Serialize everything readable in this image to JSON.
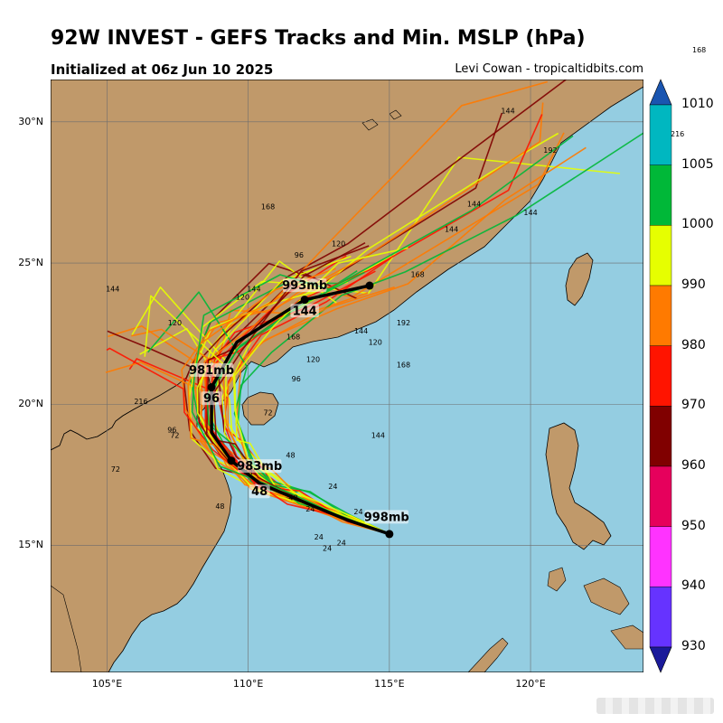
{
  "header": {
    "title": "92W INVEST - GEFS Tracks and Min. MSLP (hPa)",
    "init": "Initialized at 06z Jun 10 2025",
    "credit": "Levi Cowan - tropicaltidbits.com"
  },
  "stray_labels": [
    "168",
    "216"
  ],
  "map": {
    "lat_range": [
      10.5,
      31.5
    ],
    "lon_range": [
      103,
      124
    ],
    "lat_ticks": [
      {
        "v": 30,
        "label": "30°N"
      },
      {
        "v": 25,
        "label": "25°N"
      },
      {
        "v": 20,
        "label": "20°N"
      },
      {
        "v": 15,
        "label": "15°N"
      }
    ],
    "lon_ticks": [
      {
        "v": 105,
        "label": "105°E"
      },
      {
        "v": 110,
        "label": "110°E"
      },
      {
        "v": 115,
        "label": "115°E"
      },
      {
        "v": 120,
        "label": "120°E"
      }
    ],
    "colors": {
      "ocean": "#94cde1",
      "land": "#c0996a",
      "grid": "#6d6d6d"
    }
  },
  "mean_track": [
    {
      "lat": 15.4,
      "lon": 115.0
    },
    {
      "lat": 15.9,
      "lon": 113.5
    },
    {
      "lat": 16.6,
      "lon": 111.8
    },
    {
      "lat": 17.2,
      "lon": 110.4
    },
    {
      "lat": 18.0,
      "lon": 109.4
    },
    {
      "lat": 19.0,
      "lon": 108.7
    },
    {
      "lat": 20.6,
      "lon": 108.7
    },
    {
      "lat": 22.2,
      "lon": 109.6
    },
    {
      "lat": 23.7,
      "lon": 112.0
    },
    {
      "lat": 24.2,
      "lon": 114.3
    }
  ],
  "pressure_labels": [
    {
      "text": "998mb",
      "lat": 15.9,
      "lon": 114.9
    },
    {
      "text": "983mb",
      "lat": 17.7,
      "lon": 110.4
    },
    {
      "text": "48",
      "lat": 16.8,
      "lon": 110.4
    },
    {
      "text": "981mb",
      "lat": 21.1,
      "lon": 108.7
    },
    {
      "text": "96",
      "lat": 20.1,
      "lon": 108.7
    },
    {
      "text": "993mb",
      "lat": 24.1,
      "lon": 112.0
    },
    {
      "text": "144",
      "lat": 23.2,
      "lon": 112.0
    }
  ],
  "hour_labels": [
    {
      "t": "24",
      "lat": 15.2,
      "lon": 112.5
    },
    {
      "t": "24",
      "lat": 15.0,
      "lon": 113.3
    },
    {
      "t": "24",
      "lat": 16.2,
      "lon": 112.2
    },
    {
      "t": "24",
      "lat": 14.8,
      "lon": 112.8
    },
    {
      "t": "24",
      "lat": 17.0,
      "lon": 113.0
    },
    {
      "t": "24",
      "lat": 16.1,
      "lon": 113.9
    },
    {
      "t": "48",
      "lat": 17.5,
      "lon": 110.0
    },
    {
      "t": "48",
      "lat": 16.6,
      "lon": 111.6
    },
    {
      "t": "48",
      "lat": 16.3,
      "lon": 109.0
    },
    {
      "t": "48",
      "lat": 18.1,
      "lon": 111.5
    },
    {
      "t": "72",
      "lat": 18.8,
      "lon": 107.4
    },
    {
      "t": "72",
      "lat": 17.6,
      "lon": 105.3
    },
    {
      "t": "72",
      "lat": 19.6,
      "lon": 110.7
    },
    {
      "t": "96",
      "lat": 19.0,
      "lon": 107.3
    },
    {
      "t": "96",
      "lat": 20.8,
      "lon": 111.7
    },
    {
      "t": "96",
      "lat": 25.2,
      "lon": 111.8
    },
    {
      "t": "120",
      "lat": 22.8,
      "lon": 107.4
    },
    {
      "t": "120",
      "lat": 23.7,
      "lon": 109.8
    },
    {
      "t": "120",
      "lat": 21.5,
      "lon": 112.3
    },
    {
      "t": "120",
      "lat": 25.6,
      "lon": 113.2
    },
    {
      "t": "120",
      "lat": 22.1,
      "lon": 114.5
    },
    {
      "t": "144",
      "lat": 24.0,
      "lon": 105.2
    },
    {
      "t": "144",
      "lat": 24.0,
      "lon": 110.2
    },
    {
      "t": "144",
      "lat": 26.1,
      "lon": 117.2
    },
    {
      "t": "144",
      "lat": 26.7,
      "lon": 120.0
    },
    {
      "t": "144",
      "lat": 22.5,
      "lon": 114.0
    },
    {
      "t": "144",
      "lat": 18.8,
      "lon": 114.6
    },
    {
      "t": "144",
      "lat": 30.3,
      "lon": 119.2
    },
    {
      "t": "144",
      "lat": 27.0,
      "lon": 118.0
    },
    {
      "t": "168",
      "lat": 26.9,
      "lon": 110.7
    },
    {
      "t": "168",
      "lat": 22.3,
      "lon": 111.6
    },
    {
      "t": "168",
      "lat": 21.3,
      "lon": 115.5
    },
    {
      "t": "168",
      "lat": 24.5,
      "lon": 116.0
    },
    {
      "t": "192",
      "lat": 28.9,
      "lon": 120.7
    },
    {
      "t": "192",
      "lat": 22.8,
      "lon": 115.5
    },
    {
      "t": "216",
      "lat": 20.0,
      "lon": 106.2
    }
  ],
  "colorbar": {
    "levels": [
      {
        "label": "1010",
        "color": "#1f7cc4"
      },
      {
        "label": "1005",
        "color": "#00b7c0"
      },
      {
        "label": "1000",
        "color": "#00b838"
      },
      {
        "label": "990",
        "color": "#e6ff00"
      },
      {
        "label": "980",
        "color": "#ff7a00"
      },
      {
        "label": "970",
        "color": "#ff1400"
      },
      {
        "label": "960",
        "color": "#800000"
      },
      {
        "label": "950",
        "color": "#e6005c"
      },
      {
        "label": "940",
        "color": "#ff33ff"
      },
      {
        "label": "930",
        "color": "#6633ff"
      }
    ],
    "bottom_color": "#1a1a9a",
    "top_color": "#1a55b0"
  }
}
